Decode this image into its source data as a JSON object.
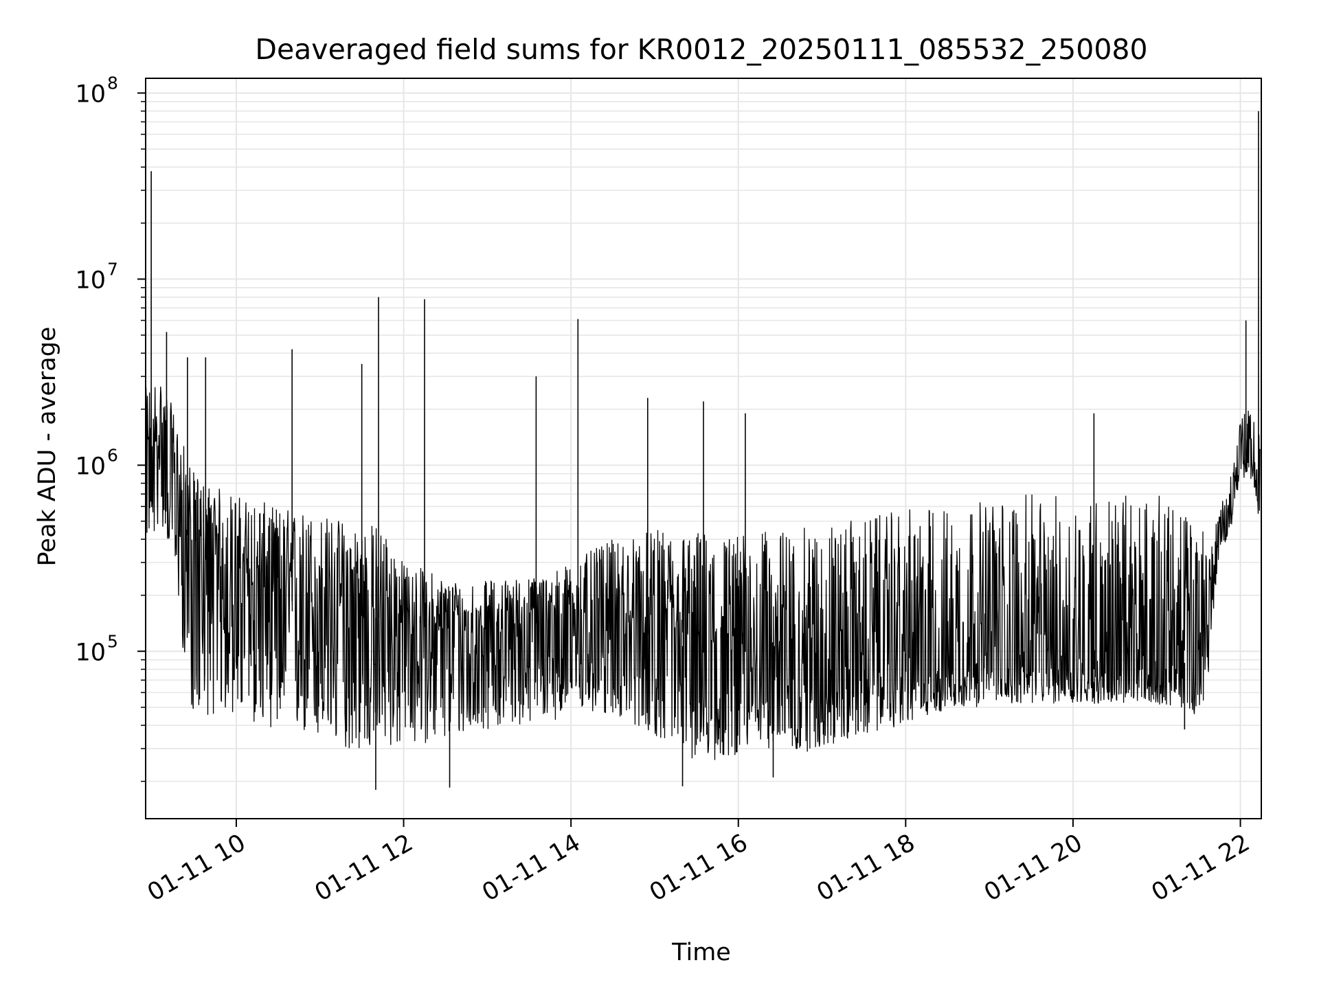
{
  "chart_data": {
    "type": "line",
    "title": "Deaveraged field sums for KR0012_20250111_085532_250080",
    "xlabel": "Time",
    "ylabel": "Peak ADU - average",
    "yscale": "log",
    "ylim": [
      12600,
      120000000
    ],
    "xlim": [
      "2025-01-11 08:55",
      "2025-01-11 22:15"
    ],
    "grid": true,
    "line_color": "#000000",
    "grid_color": "#e6e6e6",
    "x_ticks": [
      {
        "value": "2025-01-11 10:00",
        "label": "01-11 10"
      },
      {
        "value": "2025-01-11 12:00",
        "label": "01-11 12"
      },
      {
        "value": "2025-01-11 14:00",
        "label": "01-11 14"
      },
      {
        "value": "2025-01-11 16:00",
        "label": "01-11 16"
      },
      {
        "value": "2025-01-11 18:00",
        "label": "01-11 18"
      },
      {
        "value": "2025-01-11 20:00",
        "label": "01-11 20"
      },
      {
        "value": "2025-01-11 22:00",
        "label": "01-11 22"
      }
    ],
    "y_ticks": [
      {
        "value": 100000,
        "base": "10",
        "exp": "5"
      },
      {
        "value": 1000000,
        "base": "10",
        "exp": "6"
      },
      {
        "value": 10000000,
        "base": "10",
        "exp": "7"
      },
      {
        "value": 100000000,
        "base": "10",
        "exp": "8"
      }
    ],
    "series": [
      {
        "x": [
          "2025-01-11 08:55",
          "2025-01-11 09:00",
          "2025-01-11 09:05",
          "2025-01-11 09:10",
          "2025-01-11 09:15",
          "2025-01-11 09:20",
          "2025-01-11 09:25",
          "2025-01-11 09:30",
          "2025-01-11 09:40",
          "2025-01-11 09:50",
          "2025-01-11 10:00",
          "2025-01-11 10:15",
          "2025-01-11 10:30",
          "2025-01-11 10:45",
          "2025-01-11 11:00",
          "2025-01-11 11:15",
          "2025-01-11 11:30",
          "2025-01-11 11:45",
          "2025-01-11 12:00",
          "2025-01-11 12:15",
          "2025-01-11 12:30",
          "2025-01-11 12:45",
          "2025-01-11 13:00",
          "2025-01-11 13:15",
          "2025-01-11 13:30",
          "2025-01-11 13:45",
          "2025-01-11 14:00",
          "2025-01-11 14:15",
          "2025-01-11 14:30",
          "2025-01-11 14:45",
          "2025-01-11 15:00",
          "2025-01-11 15:15",
          "2025-01-11 15:30",
          "2025-01-11 15:45",
          "2025-01-11 16:00",
          "2025-01-11 16:15",
          "2025-01-11 16:30",
          "2025-01-11 16:45",
          "2025-01-11 17:00",
          "2025-01-11 17:15",
          "2025-01-11 17:30",
          "2025-01-11 17:45",
          "2025-01-11 18:00",
          "2025-01-11 18:15",
          "2025-01-11 18:30",
          "2025-01-11 18:45",
          "2025-01-11 19:00",
          "2025-01-11 19:15",
          "2025-01-11 19:30",
          "2025-01-11 19:45",
          "2025-01-11 20:00",
          "2025-01-11 20:15",
          "2025-01-11 20:30",
          "2025-01-11 20:45",
          "2025-01-11 21:00",
          "2025-01-11 21:15",
          "2025-01-11 21:30",
          "2025-01-11 21:35",
          "2025-01-11 21:40",
          "2025-01-11 21:45",
          "2025-01-11 21:50",
          "2025-01-11 21:55",
          "2025-01-11 22:00",
          "2025-01-11 22:05",
          "2025-01-11 22:10",
          "2025-01-11 22:12",
          "2025-01-11 22:14"
        ],
        "values": [
          1200000,
          1000000,
          1500000,
          1100000,
          800000,
          550000,
          420000,
          360000,
          300000,
          260000,
          240000,
          220000,
          200000,
          180000,
          170000,
          160000,
          155000,
          150000,
          140000,
          135000,
          130000,
          128000,
          130000,
          135000,
          140000,
          145000,
          150000,
          160000,
          150000,
          130000,
          120000,
          110000,
          100000,
          95000,
          100000,
          98000,
          95000,
          92000,
          90000,
          90000,
          88000,
          87000,
          85000,
          85000,
          86000,
          87000,
          88000,
          88000,
          87000,
          85000,
          82000,
          80000,
          78000,
          80000,
          82000,
          85000,
          90000,
          130000,
          220000,
          400000,
          550000,
          750000,
          1200000,
          1100000,
          1000000,
          900000,
          700000
        ],
        "lower": [
          400000,
          380000,
          500000,
          400000,
          300000,
          150000,
          50000,
          45000,
          45000,
          45000,
          45000,
          40000,
          38000,
          35000,
          32000,
          30000,
          28000,
          30000,
          30000,
          32000,
          32000,
          35000,
          38000,
          40000,
          40000,
          42000,
          45000,
          45000,
          45000,
          40000,
          35000,
          30000,
          25000,
          25000,
          28000,
          30000,
          30000,
          28000,
          30000,
          32000,
          35000,
          38000,
          40000,
          45000,
          48000,
          50000,
          50000,
          52000,
          52000,
          52000,
          52000,
          52000,
          52000,
          52000,
          52000,
          50000,
          45000,
          45000,
          150000,
          320000,
          400000,
          500000,
          800000,
          900000,
          750000,
          600000,
          350000
        ],
        "upper": [
          2600000,
          3000000,
          3000000,
          2500000,
          2000000,
          1500000,
          1100000,
          900000,
          800000,
          750000,
          700000,
          650000,
          600000,
          580000,
          550000,
          520000,
          500000,
          480000,
          300000,
          280000,
          250000,
          240000,
          240000,
          250000,
          250000,
          270000,
          300000,
          350000,
          400000,
          420000,
          450000,
          450000,
          450000,
          440000,
          430000,
          440000,
          450000,
          460000,
          480000,
          500000,
          520000,
          550000,
          580000,
          600000,
          620000,
          640000,
          650000,
          680000,
          700000,
          700000,
          700000,
          700000,
          700000,
          700000,
          700000,
          600000,
          500000,
          450000,
          450000,
          600000,
          700000,
          1100000,
          1800000,
          2000000,
          1800000,
          1600000,
          1500000
        ]
      }
    ],
    "spikes": [
      {
        "x": "2025-01-11 08:59",
        "y": 38000000
      },
      {
        "x": "2025-01-11 09:10",
        "y": 5200000
      },
      {
        "x": "2025-01-11 09:25",
        "y": 3800000
      },
      {
        "x": "2025-01-11 09:38",
        "y": 3800000
      },
      {
        "x": "2025-01-11 10:40",
        "y": 4200000
      },
      {
        "x": "2025-01-11 11:30",
        "y": 3500000
      },
      {
        "x": "2025-01-11 11:42",
        "y": 8000000
      },
      {
        "x": "2025-01-11 12:15",
        "y": 7800000
      },
      {
        "x": "2025-01-11 13:35",
        "y": 3000000
      },
      {
        "x": "2025-01-11 14:05",
        "y": 6100000
      },
      {
        "x": "2025-01-11 14:55",
        "y": 2300000
      },
      {
        "x": "2025-01-11 15:35",
        "y": 2200000
      },
      {
        "x": "2025-01-11 16:05",
        "y": 1900000
      },
      {
        "x": "2025-01-11 20:15",
        "y": 1900000
      },
      {
        "x": "2025-01-11 22:04",
        "y": 6000000
      },
      {
        "x": "2025-01-11 22:13",
        "y": 80000000
      }
    ],
    "dips": [
      {
        "x": "2025-01-11 11:40",
        "y": 18000
      },
      {
        "x": "2025-01-11 12:33",
        "y": 18500
      },
      {
        "x": "2025-01-11 15:20",
        "y": 18800
      },
      {
        "x": "2025-01-11 16:25",
        "y": 21000
      },
      {
        "x": "2025-01-11 21:20",
        "y": 38000
      }
    ]
  }
}
